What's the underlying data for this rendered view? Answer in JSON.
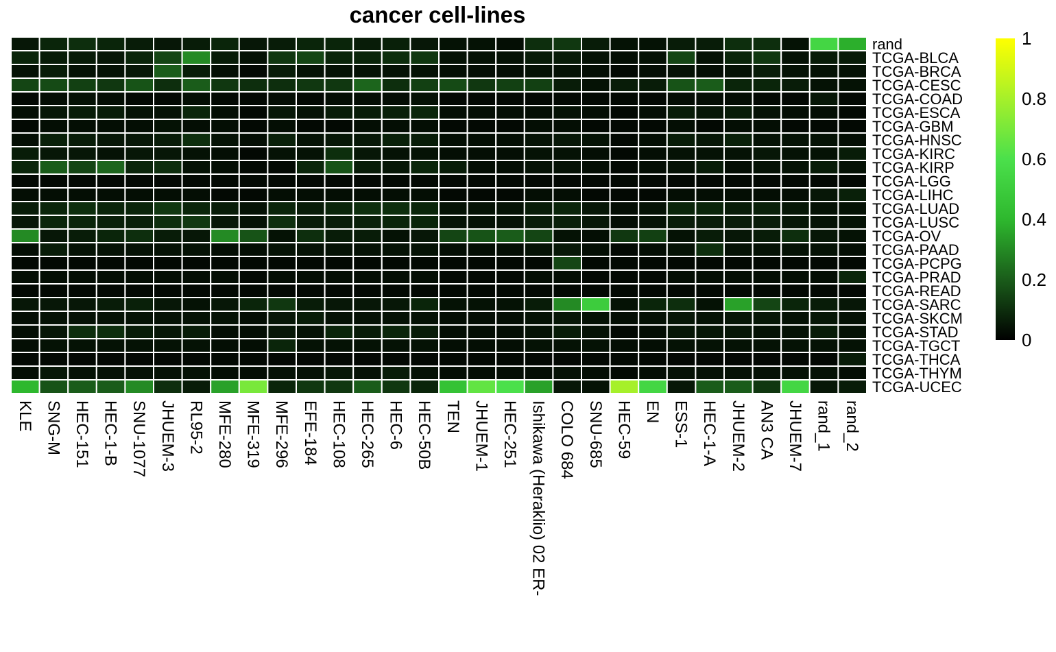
{
  "chart_data": {
    "type": "heatmap",
    "title": "cancer cell-lines",
    "columns": [
      "KLE",
      "SNG-M",
      "HEC-151",
      "HEC-1-B",
      "SNU-1077",
      "JHUEM-3",
      "RL95-2",
      "MFE-280",
      "MFE-319",
      "MFE-296",
      "EFE-184",
      "HEC-108",
      "HEC-265",
      "HEC-6",
      "HEC-50B",
      "TEN",
      "JHUEM-1",
      "HEC-251",
      "Ishikawa (Heraklio) 02 ER-",
      "COLO 684",
      "SNU-685",
      "HEC-59",
      "EN",
      "ESS-1",
      "HEC-1-A",
      "JHUEM-2",
      "AN3 CA",
      "JHUEM-7",
      "rand_1",
      "rand_2"
    ],
    "rows": [
      "rand",
      "TCGA-BLCA",
      "TCGA-BRCA",
      "TCGA-CESC",
      "TCGA-COAD",
      "TCGA-ESCA",
      "TCGA-GBM",
      "TCGA-HNSC",
      "TCGA-KIRC",
      "TCGA-KIRP",
      "TCGA-LGG",
      "TCGA-LIHC",
      "TCGA-LUAD",
      "TCGA-LUSC",
      "TCGA-OV",
      "TCGA-PAAD",
      "TCGA-PCPG",
      "TCGA-PRAD",
      "TCGA-READ",
      "TCGA-SARC",
      "TCGA-SKCM",
      "TCGA-STAD",
      "TCGA-TGCT",
      "TCGA-THCA",
      "TCGA-THYM",
      "TCGA-UCEC"
    ],
    "values": [
      [
        0.05,
        0.08,
        0.1,
        0.08,
        0.06,
        0.05,
        0.06,
        0.08,
        0.05,
        0.06,
        0.08,
        0.08,
        0.06,
        0.07,
        0.05,
        0.04,
        0.04,
        0.03,
        0.1,
        0.12,
        0.06,
        0.04,
        0.04,
        0.06,
        0.06,
        0.1,
        0.1,
        0.04,
        0.55,
        0.38
      ],
      [
        0.08,
        0.06,
        0.06,
        0.05,
        0.08,
        0.15,
        0.3,
        0.06,
        0.04,
        0.12,
        0.15,
        0.08,
        0.08,
        0.1,
        0.12,
        0.04,
        0.04,
        0.04,
        0.06,
        0.06,
        0.04,
        0.03,
        0.04,
        0.15,
        0.04,
        0.08,
        0.12,
        0.04,
        0.06,
        0.06
      ],
      [
        0.04,
        0.06,
        0.04,
        0.04,
        0.05,
        0.2,
        0.06,
        0.03,
        0.02,
        0.06,
        0.04,
        0.04,
        0.04,
        0.04,
        0.04,
        0.03,
        0.03,
        0.03,
        0.04,
        0.04,
        0.03,
        0.02,
        0.03,
        0.04,
        0.03,
        0.04,
        0.06,
        0.04,
        0.04,
        0.04
      ],
      [
        0.15,
        0.16,
        0.14,
        0.12,
        0.18,
        0.1,
        0.2,
        0.12,
        0.1,
        0.1,
        0.12,
        0.12,
        0.22,
        0.1,
        0.14,
        0.16,
        0.12,
        0.14,
        0.14,
        0.06,
        0.04,
        0.06,
        0.06,
        0.18,
        0.2,
        0.08,
        0.08,
        0.06,
        0.04,
        0.04
      ],
      [
        0.02,
        0.03,
        0.04,
        0.03,
        0.02,
        0.02,
        0.03,
        0.02,
        0.02,
        0.03,
        0.02,
        0.03,
        0.03,
        0.03,
        0.04,
        0.02,
        0.02,
        0.02,
        0.02,
        0.02,
        0.02,
        0.02,
        0.02,
        0.03,
        0.03,
        0.03,
        0.02,
        0.02,
        0.05,
        0.02
      ],
      [
        0.03,
        0.05,
        0.06,
        0.06,
        0.04,
        0.04,
        0.08,
        0.03,
        0.02,
        0.05,
        0.04,
        0.06,
        0.06,
        0.07,
        0.08,
        0.03,
        0.03,
        0.03,
        0.03,
        0.04,
        0.03,
        0.02,
        0.03,
        0.06,
        0.05,
        0.06,
        0.04,
        0.03,
        0.03,
        0.02
      ],
      [
        0.02,
        0.03,
        0.03,
        0.03,
        0.03,
        0.04,
        0.03,
        0.03,
        0.02,
        0.03,
        0.02,
        0.02,
        0.03,
        0.03,
        0.03,
        0.02,
        0.02,
        0.02,
        0.03,
        0.03,
        0.02,
        0.02,
        0.02,
        0.03,
        0.02,
        0.03,
        0.03,
        0.02,
        0.02,
        0.02
      ],
      [
        0.03,
        0.07,
        0.06,
        0.05,
        0.05,
        0.06,
        0.1,
        0.04,
        0.03,
        0.07,
        0.04,
        0.05,
        0.05,
        0.07,
        0.06,
        0.03,
        0.03,
        0.03,
        0.04,
        0.05,
        0.04,
        0.02,
        0.03,
        0.06,
        0.05,
        0.07,
        0.04,
        0.04,
        0.04,
        0.03
      ],
      [
        0.06,
        0.05,
        0.05,
        0.04,
        0.05,
        0.05,
        0.04,
        0.03,
        0.02,
        0.04,
        0.04,
        0.1,
        0.05,
        0.04,
        0.04,
        0.03,
        0.03,
        0.03,
        0.04,
        0.04,
        0.03,
        0.02,
        0.03,
        0.04,
        0.04,
        0.04,
        0.05,
        0.04,
        0.04,
        0.06
      ],
      [
        0.08,
        0.2,
        0.15,
        0.22,
        0.08,
        0.1,
        0.04,
        0.03,
        0.02,
        0.02,
        0.08,
        0.18,
        0.06,
        0.05,
        0.08,
        0.06,
        0.03,
        0.03,
        0.04,
        0.04,
        0.03,
        0.02,
        0.03,
        0.04,
        0.06,
        0.03,
        0.04,
        0.04,
        0.06,
        0.04
      ],
      [
        0.02,
        0.02,
        0.02,
        0.02,
        0.02,
        0.02,
        0.02,
        0.02,
        0.02,
        0.02,
        0.02,
        0.02,
        0.02,
        0.02,
        0.02,
        0.02,
        0.02,
        0.02,
        0.02,
        0.02,
        0.02,
        0.02,
        0.02,
        0.02,
        0.02,
        0.02,
        0.02,
        0.02,
        0.02,
        0.02
      ],
      [
        0.03,
        0.03,
        0.03,
        0.03,
        0.03,
        0.03,
        0.03,
        0.02,
        0.02,
        0.03,
        0.03,
        0.03,
        0.03,
        0.03,
        0.03,
        0.02,
        0.02,
        0.02,
        0.03,
        0.03,
        0.02,
        0.02,
        0.02,
        0.03,
        0.03,
        0.03,
        0.03,
        0.03,
        0.05,
        0.07
      ],
      [
        0.06,
        0.08,
        0.1,
        0.08,
        0.08,
        0.12,
        0.08,
        0.06,
        0.04,
        0.08,
        0.06,
        0.08,
        0.1,
        0.1,
        0.08,
        0.04,
        0.04,
        0.04,
        0.06,
        0.08,
        0.05,
        0.03,
        0.04,
        0.08,
        0.08,
        0.06,
        0.07,
        0.05,
        0.04,
        0.04
      ],
      [
        0.05,
        0.08,
        0.08,
        0.07,
        0.07,
        0.1,
        0.12,
        0.05,
        0.04,
        0.1,
        0.06,
        0.06,
        0.07,
        0.08,
        0.08,
        0.04,
        0.04,
        0.04,
        0.06,
        0.07,
        0.05,
        0.03,
        0.04,
        0.06,
        0.06,
        0.06,
        0.06,
        0.05,
        0.04,
        0.04
      ],
      [
        0.3,
        0.05,
        0.06,
        0.08,
        0.1,
        0.06,
        0.05,
        0.3,
        0.18,
        0.04,
        0.1,
        0.06,
        0.06,
        0.04,
        0.05,
        0.15,
        0.18,
        0.2,
        0.15,
        0.04,
        0.03,
        0.12,
        0.14,
        0.04,
        0.06,
        0.05,
        0.06,
        0.1,
        0.05,
        0.04
      ],
      [
        0.03,
        0.06,
        0.04,
        0.04,
        0.04,
        0.04,
        0.04,
        0.03,
        0.03,
        0.04,
        0.04,
        0.04,
        0.04,
        0.04,
        0.04,
        0.03,
        0.03,
        0.03,
        0.04,
        0.05,
        0.03,
        0.02,
        0.03,
        0.04,
        0.1,
        0.04,
        0.04,
        0.04,
        0.04,
        0.03
      ],
      [
        0.02,
        0.02,
        0.02,
        0.02,
        0.02,
        0.02,
        0.02,
        0.02,
        0.02,
        0.02,
        0.02,
        0.02,
        0.02,
        0.02,
        0.02,
        0.02,
        0.02,
        0.02,
        0.02,
        0.15,
        0.02,
        0.02,
        0.02,
        0.02,
        0.02,
        0.02,
        0.02,
        0.02,
        0.02,
        0.02
      ],
      [
        0.03,
        0.03,
        0.03,
        0.03,
        0.03,
        0.03,
        0.03,
        0.03,
        0.02,
        0.03,
        0.03,
        0.03,
        0.03,
        0.03,
        0.03,
        0.02,
        0.02,
        0.02,
        0.03,
        0.03,
        0.02,
        0.02,
        0.02,
        0.03,
        0.03,
        0.03,
        0.03,
        0.03,
        0.03,
        0.08
      ],
      [
        0.02,
        0.02,
        0.02,
        0.02,
        0.02,
        0.02,
        0.02,
        0.02,
        0.02,
        0.02,
        0.02,
        0.02,
        0.02,
        0.02,
        0.02,
        0.02,
        0.02,
        0.02,
        0.02,
        0.02,
        0.02,
        0.02,
        0.02,
        0.02,
        0.02,
        0.02,
        0.02,
        0.02,
        0.02,
        0.02
      ],
      [
        0.05,
        0.05,
        0.05,
        0.06,
        0.07,
        0.05,
        0.04,
        0.05,
        0.08,
        0.12,
        0.06,
        0.05,
        0.05,
        0.05,
        0.08,
        0.04,
        0.04,
        0.04,
        0.06,
        0.3,
        0.5,
        0.04,
        0.08,
        0.1,
        0.04,
        0.35,
        0.15,
        0.08,
        0.06,
        0.05
      ],
      [
        0.03,
        0.04,
        0.04,
        0.04,
        0.04,
        0.04,
        0.04,
        0.04,
        0.03,
        0.05,
        0.06,
        0.04,
        0.04,
        0.04,
        0.04,
        0.03,
        0.03,
        0.03,
        0.04,
        0.05,
        0.04,
        0.03,
        0.04,
        0.05,
        0.04,
        0.05,
        0.05,
        0.04,
        0.05,
        0.04
      ],
      [
        0.03,
        0.05,
        0.1,
        0.1,
        0.06,
        0.05,
        0.06,
        0.03,
        0.03,
        0.05,
        0.04,
        0.08,
        0.06,
        0.08,
        0.06,
        0.03,
        0.03,
        0.03,
        0.04,
        0.06,
        0.04,
        0.02,
        0.03,
        0.05,
        0.05,
        0.05,
        0.04,
        0.04,
        0.06,
        0.04
      ],
      [
        0.03,
        0.04,
        0.04,
        0.04,
        0.04,
        0.04,
        0.04,
        0.03,
        0.03,
        0.08,
        0.04,
        0.04,
        0.04,
        0.04,
        0.04,
        0.03,
        0.03,
        0.03,
        0.04,
        0.04,
        0.04,
        0.03,
        0.03,
        0.04,
        0.04,
        0.04,
        0.04,
        0.04,
        0.04,
        0.04
      ],
      [
        0.02,
        0.02,
        0.02,
        0.02,
        0.02,
        0.02,
        0.02,
        0.02,
        0.02,
        0.02,
        0.02,
        0.02,
        0.02,
        0.02,
        0.02,
        0.02,
        0.02,
        0.02,
        0.02,
        0.02,
        0.02,
        0.02,
        0.02,
        0.02,
        0.02,
        0.02,
        0.02,
        0.02,
        0.02,
        0.06
      ],
      [
        0.03,
        0.05,
        0.04,
        0.04,
        0.04,
        0.04,
        0.04,
        0.03,
        0.03,
        0.04,
        0.04,
        0.05,
        0.04,
        0.06,
        0.04,
        0.03,
        0.03,
        0.03,
        0.03,
        0.04,
        0.03,
        0.02,
        0.03,
        0.04,
        0.04,
        0.04,
        0.04,
        0.04,
        0.04,
        0.03
      ],
      [
        0.4,
        0.18,
        0.2,
        0.2,
        0.3,
        0.1,
        0.06,
        0.35,
        0.7,
        0.08,
        0.12,
        0.12,
        0.2,
        0.12,
        0.08,
        0.45,
        0.65,
        0.6,
        0.35,
        0.05,
        0.04,
        0.8,
        0.55,
        0.05,
        0.2,
        0.2,
        0.12,
        0.55,
        0.05,
        0.06
      ]
    ],
    "legend": {
      "ticks": [
        0,
        0.2,
        0.4,
        0.6,
        0.8,
        1
      ],
      "tick_labels": [
        "0",
        "0.2",
        "0.4",
        "0.6",
        "0.8",
        "1"
      ],
      "range": [
        0,
        1
      ],
      "colors": [
        "#000000",
        "#1a5c1a",
        "#2eb82e",
        "#4be04b",
        "#a6f02a",
        "#ffff00"
      ],
      "placement": "right"
    },
    "cell_border_color": "#ffffff"
  }
}
